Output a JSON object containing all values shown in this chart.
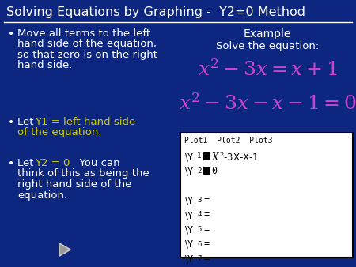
{
  "bg_color": "#0d2680",
  "title": "Solving Equations by Graphing -  Y2=0 Method",
  "title_color": "#ffffff",
  "title_fontsize": 11.5,
  "line_color": "#ffffff",
  "white": "#ffffff",
  "yellow_color": "#cccc00",
  "magenta_color": "#cc44cc",
  "bullet1_lines": [
    "Move all terms to the left hand side of the equation,",
    "so that zero is on the right",
    "hand side."
  ],
  "example_label": "Example",
  "solve_label": "Solve the equation:",
  "arrow_color": "#aaaaaa",
  "calc_bg": "#ffffff",
  "calc_border": "#000000"
}
